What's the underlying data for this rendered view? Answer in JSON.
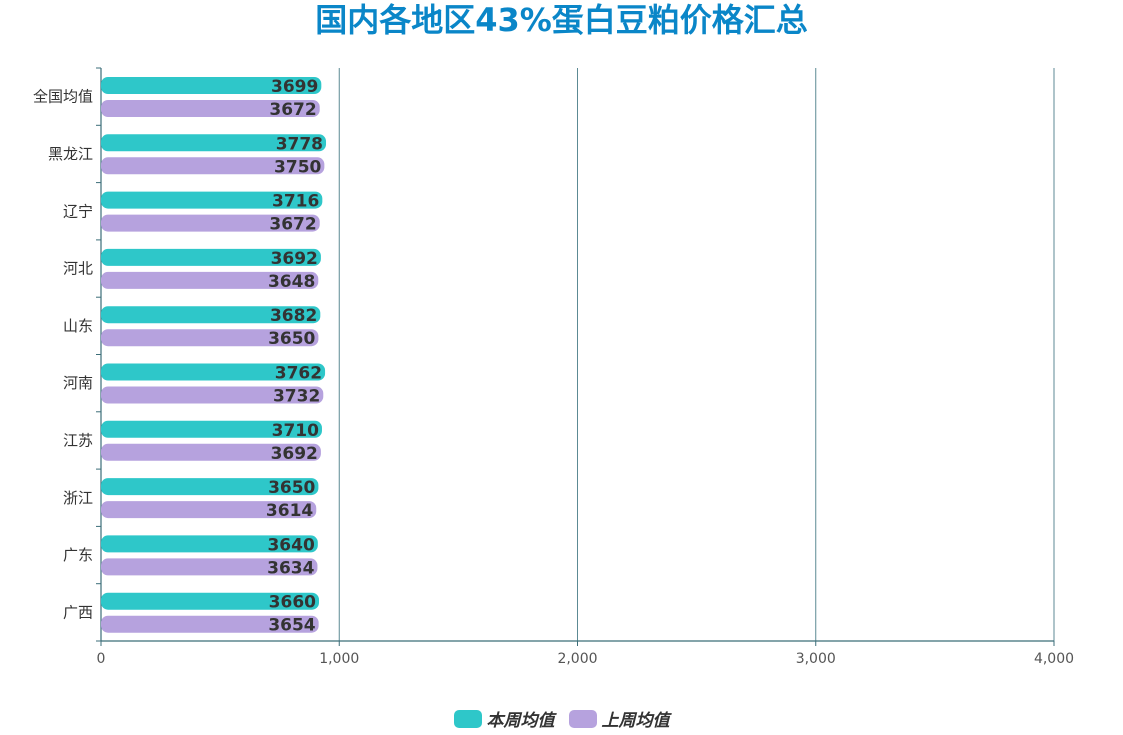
{
  "chart_data": {
    "type": "bar",
    "orientation": "horizontal",
    "title": "国内各地区43%蛋白豆粕价格汇总",
    "categories": [
      "全国均值",
      "黑龙江",
      "辽宁",
      "河北",
      "山东",
      "河南",
      "江苏",
      "浙江",
      "广东",
      "广西"
    ],
    "series": [
      {
        "name": "本周均值",
        "color": "#2ec7c9",
        "values": [
          3699,
          3778,
          3716,
          3692,
          3682,
          3762,
          3710,
          3650,
          3640,
          3660
        ]
      },
      {
        "name": "上周均值",
        "color": "#b6a2de",
        "values": [
          3672,
          3750,
          3672,
          3648,
          3650,
          3732,
          3692,
          3614,
          3634,
          3654
        ]
      }
    ],
    "xaxis": {
      "ticks": [
        0,
        1000,
        2000,
        3000,
        4000
      ],
      "tick_labels": [
        "0",
        "1,000",
        "2,000",
        "3,000",
        "4,000"
      ],
      "range": [
        0,
        4000
      ]
    },
    "grid": true,
    "legend_position": "bottom-center"
  }
}
